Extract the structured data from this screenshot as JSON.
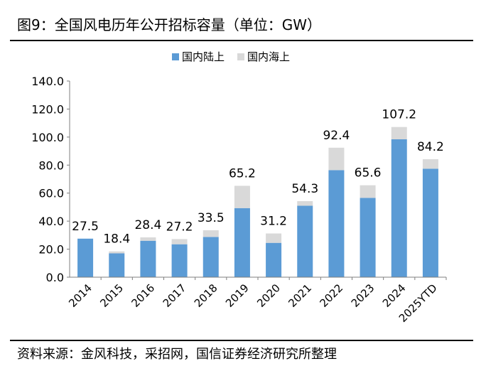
{
  "title": "图9：全国风电历年公开招标容量（单位：GW）",
  "source": "资料来源：金风科技，采招网，国信证券经济研究所整理",
  "colors": {
    "onshore": "#5B9BD5",
    "offshore": "#D9D9D9",
    "axis": "#7f7f7f"
  },
  "chart_data": {
    "type": "bar",
    "stacked": true,
    "title": "全国风电历年公开招标容量（单位：GW）",
    "xlabel": "",
    "ylabel": "",
    "ylim": [
      0,
      140
    ],
    "yticks": [
      "0.0",
      "20.0",
      "40.0",
      "60.0",
      "80.0",
      "100.0",
      "120.0",
      "140.0"
    ],
    "legend_position": "top-center",
    "categories": [
      "2014",
      "2015",
      "2016",
      "2017",
      "2018",
      "2019",
      "2020",
      "2021",
      "2022",
      "2023",
      "2024",
      "2025YTD"
    ],
    "series": [
      {
        "name": "国内陆上",
        "values": [
          27.5,
          17.0,
          26.0,
          23.5,
          28.7,
          49.3,
          24.5,
          51.0,
          76.4,
          56.6,
          98.4,
          77.4
        ]
      },
      {
        "name": "国内海上",
        "values": [
          0.0,
          1.4,
          2.4,
          3.7,
          4.8,
          15.9,
          6.7,
          3.3,
          16.0,
          9.0,
          8.8,
          6.8
        ]
      }
    ],
    "totals": [
      "27.5",
      "18.4",
      "28.4",
      "27.2",
      "33.5",
      "65.2",
      "31.2",
      "54.3",
      "92.4",
      "65.6",
      "107.2",
      "84.2"
    ]
  }
}
